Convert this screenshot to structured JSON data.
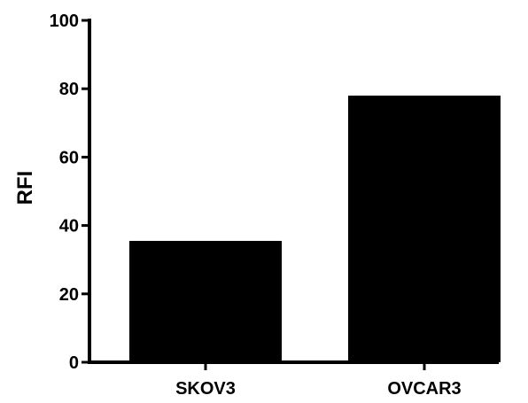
{
  "chart_data": {
    "type": "bar",
    "categories": [
      "SKOV3",
      "OVCAR3"
    ],
    "values": [
      35.5,
      78
    ],
    "title": "",
    "xlabel": "",
    "ylabel": "RFI",
    "ylim": [
      0,
      100
    ],
    "yticks": [
      "0",
      "20",
      "40",
      "60",
      "80",
      "100"
    ],
    "grid": false,
    "bar_color": "#000000",
    "axis_color": "#000000"
  }
}
